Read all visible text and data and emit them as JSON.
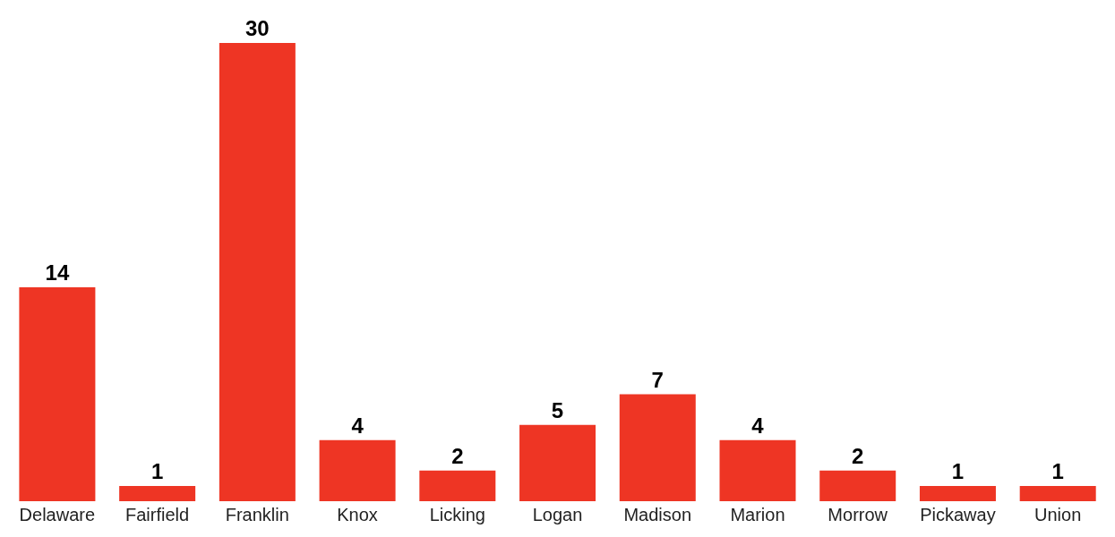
{
  "chart_data": {
    "type": "bar",
    "categories": [
      "Delaware",
      "Fairfield",
      "Franklin",
      "Knox",
      "Licking",
      "Logan",
      "Madison",
      "Marion",
      "Morrow",
      "Pickaway",
      "Union"
    ],
    "values": [
      14,
      1,
      30,
      4,
      2,
      5,
      7,
      4,
      2,
      1,
      1
    ],
    "color": "#ee3524",
    "data_labels": true,
    "grid": false,
    "legend": false
  }
}
